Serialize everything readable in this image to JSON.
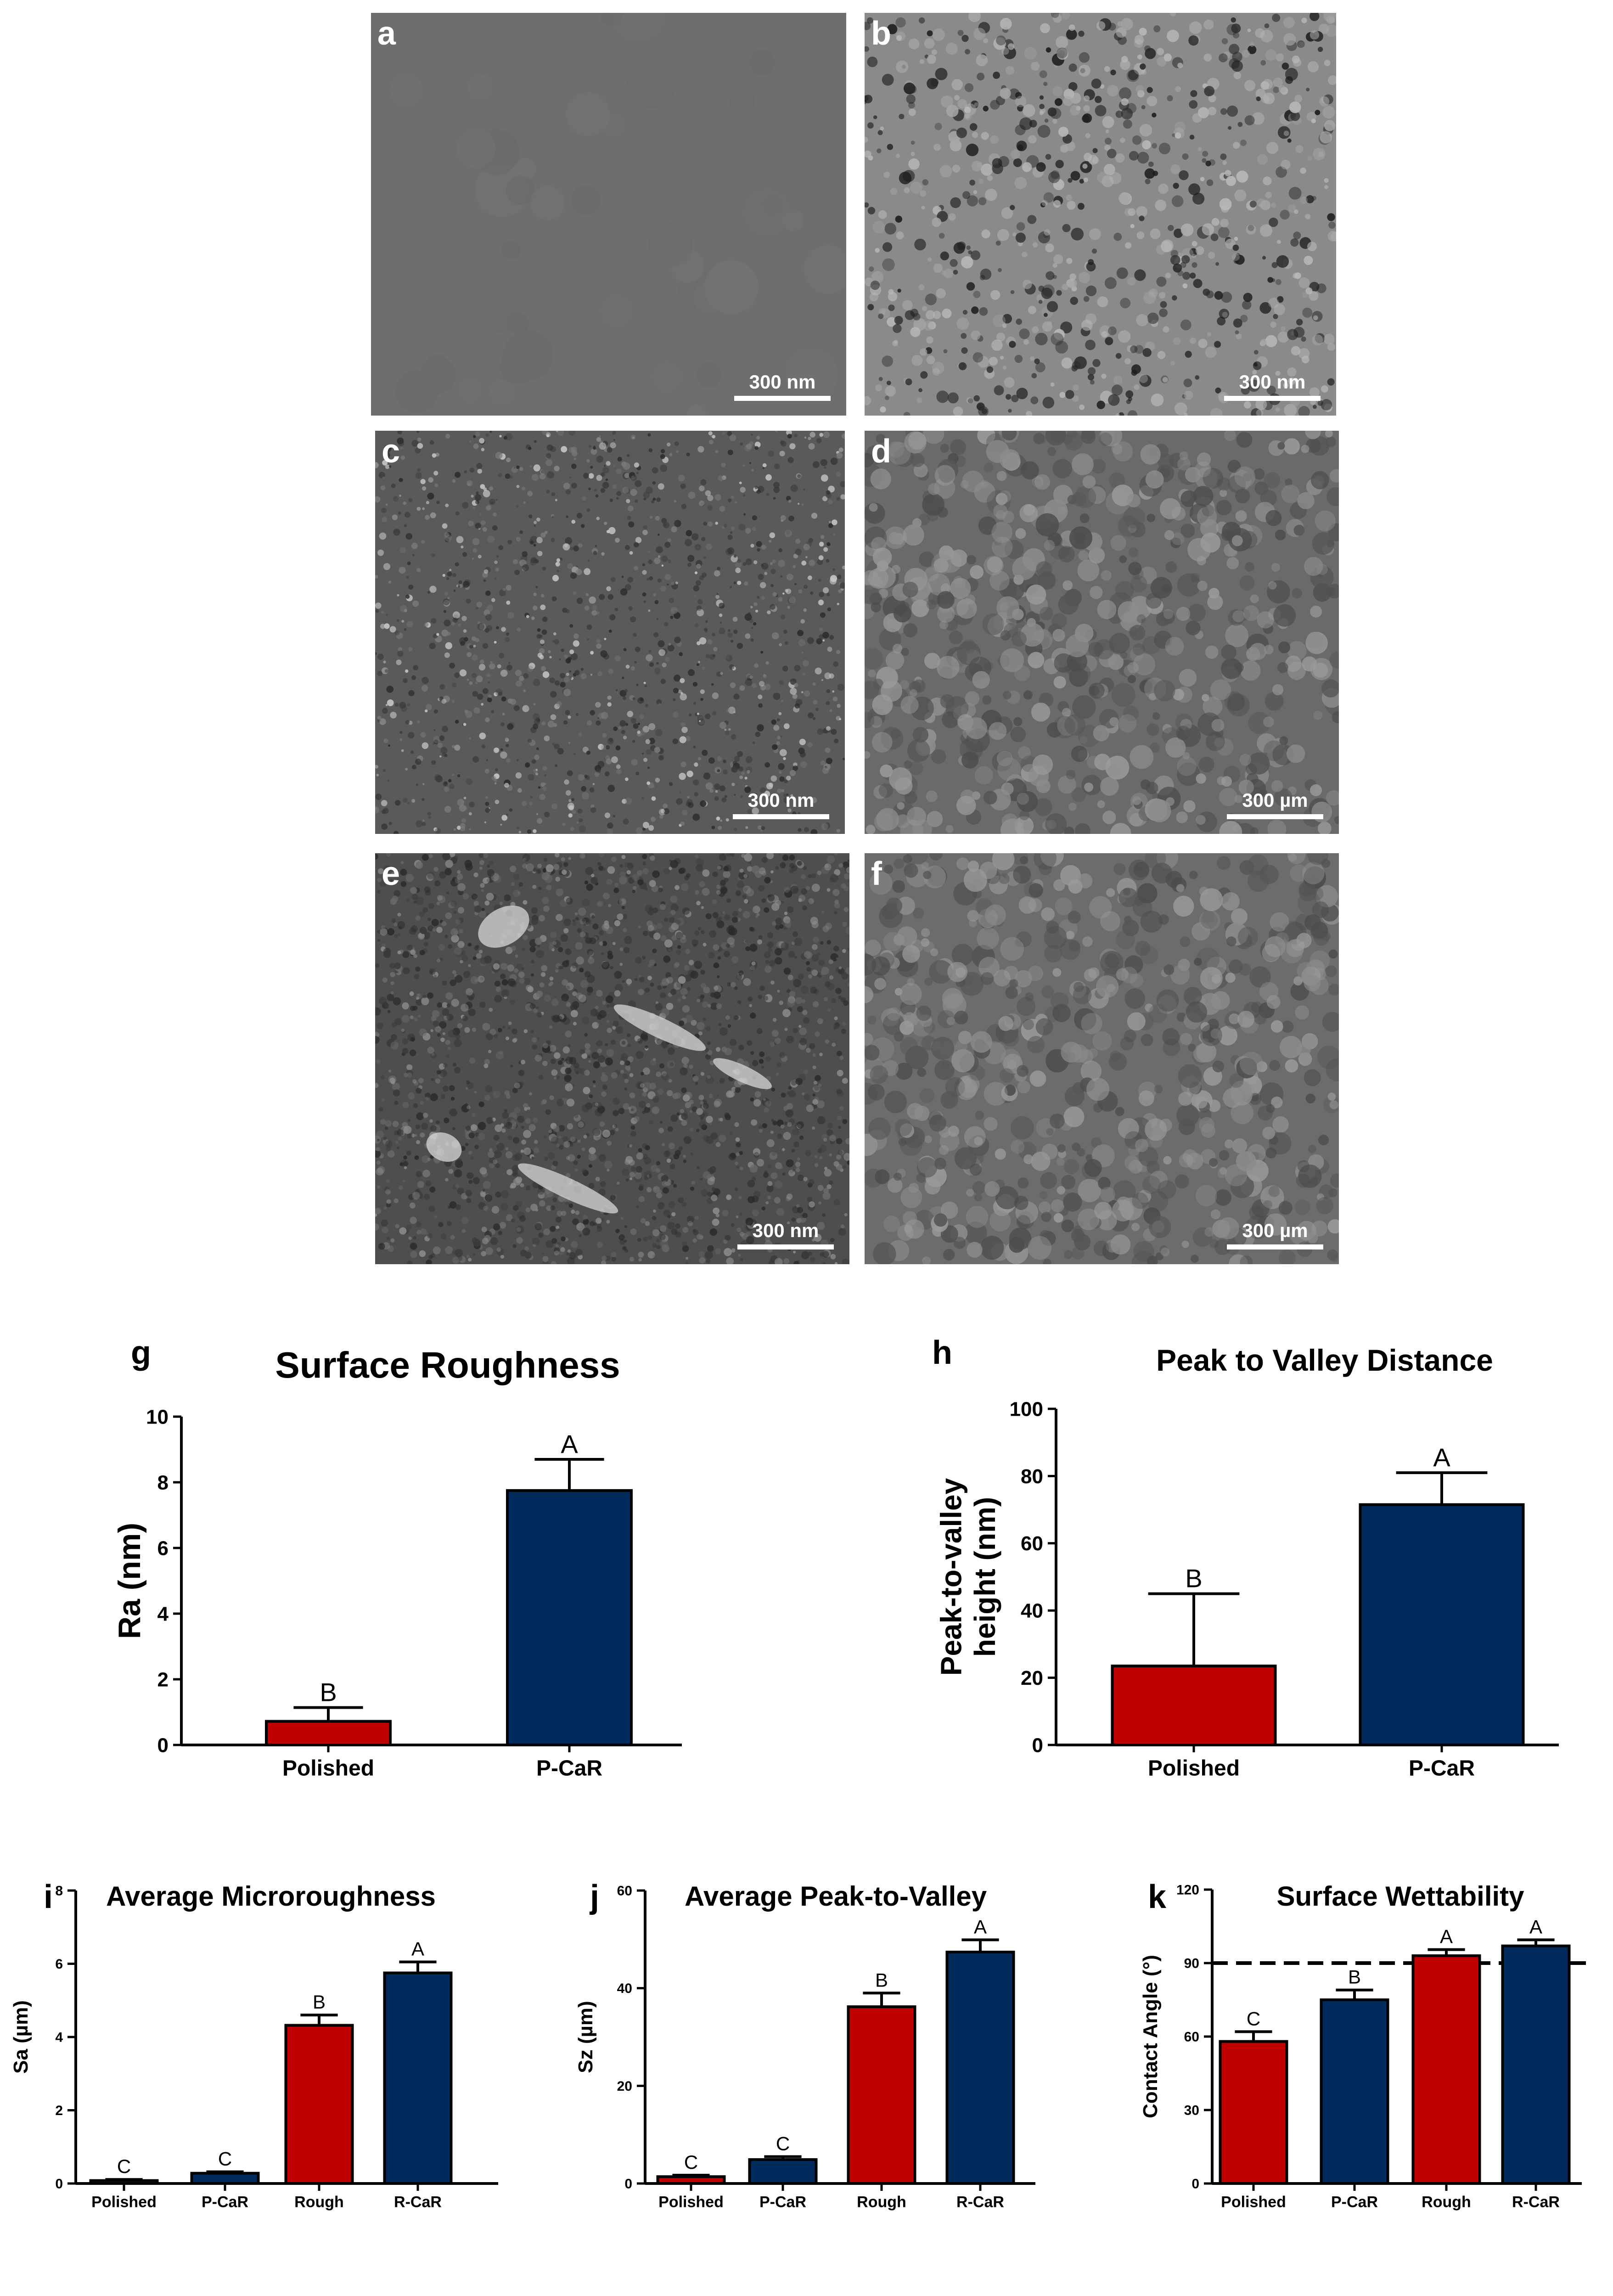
{
  "panels": [
    {
      "letter": "a",
      "scale": "300 nm",
      "tone": "#6e6e6e",
      "texture": "smooth"
    },
    {
      "letter": "b",
      "scale": "300 nm",
      "tone": "#8a8a8a",
      "texture": "porous"
    },
    {
      "letter": "c",
      "scale": "300 nm",
      "tone": "#5a5a5a",
      "texture": "grainy"
    },
    {
      "letter": "d",
      "scale": "300 µm",
      "tone": "#6a6a6a",
      "texture": "lumpy"
    },
    {
      "letter": "e",
      "scale": "300 nm",
      "tone": "#4e4e4e",
      "texture": "granular"
    },
    {
      "letter": "f",
      "scale": "300 µm",
      "tone": "#6c6c6c",
      "texture": "lumpy"
    }
  ],
  "colors": {
    "polished": "#c00000",
    "car": "#002b5c",
    "rough": "#c00000"
  },
  "chart_data": [
    {
      "id": "g",
      "type": "bar",
      "title": "Surface Roughness",
      "ylabel": "Ra (nm)",
      "xlabel": "",
      "categories": [
        "Polished",
        "P-CaR"
      ],
      "values": [
        0.72,
        7.75
      ],
      "errors": [
        0.42,
        0.95
      ],
      "letters": [
        "B",
        "A"
      ],
      "ylim": [
        0,
        10
      ],
      "yticks": [
        "0",
        "2",
        "4",
        "6",
        "8",
        "10"
      ],
      "bar_colors": [
        "#c00000",
        "#002b5c"
      ]
    },
    {
      "id": "h",
      "type": "bar",
      "title": "Peak to Valley Distance",
      "ylabel": "Peak-to-valley height (nm)",
      "xlabel": "",
      "categories": [
        "Polished",
        "P-CaR"
      ],
      "values": [
        23.5,
        71.5
      ],
      "errors": [
        21.5,
        9.5
      ],
      "letters": [
        "B",
        "A"
      ],
      "ylim": [
        0,
        100
      ],
      "yticks": [
        "0",
        "20",
        "40",
        "60",
        "80",
        "100"
      ],
      "bar_colors": [
        "#c00000",
        "#002b5c"
      ]
    },
    {
      "id": "i",
      "type": "bar",
      "title": "Average Microroughness",
      "ylabel": "Sa (µm)",
      "xlabel": "",
      "categories": [
        "Polished",
        "P-CaR",
        "Rough",
        "R-CaR"
      ],
      "values": [
        0.08,
        0.28,
        4.32,
        5.75
      ],
      "errors": [
        0.03,
        0.04,
        0.28,
        0.3
      ],
      "letters": [
        "C",
        "C",
        "B",
        "A"
      ],
      "ylim": [
        0,
        8
      ],
      "yticks": [
        "0",
        "2",
        "4",
        "6",
        "8"
      ],
      "bar_colors": [
        "#c00000",
        "#002b5c",
        "#c00000",
        "#002b5c"
      ]
    },
    {
      "id": "j",
      "type": "bar",
      "title": "Average Peak-to-Valley",
      "ylabel": "Sz (µm)",
      "xlabel": "",
      "categories": [
        "Polished",
        "P-CaR",
        "Rough",
        "R-CaR"
      ],
      "values": [
        1.4,
        4.9,
        36.2,
        47.4
      ],
      "errors": [
        0.3,
        0.6,
        2.8,
        2.5
      ],
      "letters": [
        "C",
        "C",
        "B",
        "A"
      ],
      "ylim": [
        0,
        60
      ],
      "yticks": [
        "0",
        "20",
        "40",
        "60"
      ],
      "bar_colors": [
        "#c00000",
        "#002b5c",
        "#c00000",
        "#002b5c"
      ]
    },
    {
      "id": "k",
      "type": "bar",
      "title": "Surface Wettability",
      "ylabel": "Contact Angle (°)",
      "xlabel": "",
      "categories": [
        "Polished",
        "P-CaR",
        "Rough",
        "R-CaR"
      ],
      "values": [
        58,
        75,
        93,
        97
      ],
      "errors": [
        4,
        4,
        2.5,
        2.5
      ],
      "letters": [
        "C",
        "B",
        "A",
        "A"
      ],
      "ylim": [
        0,
        120
      ],
      "yticks": [
        "0",
        "30",
        "60",
        "90",
        "120"
      ],
      "bar_colors": [
        "#c00000",
        "#002b5c",
        "#c00000",
        "#002b5c"
      ],
      "reference_line": 90
    }
  ]
}
